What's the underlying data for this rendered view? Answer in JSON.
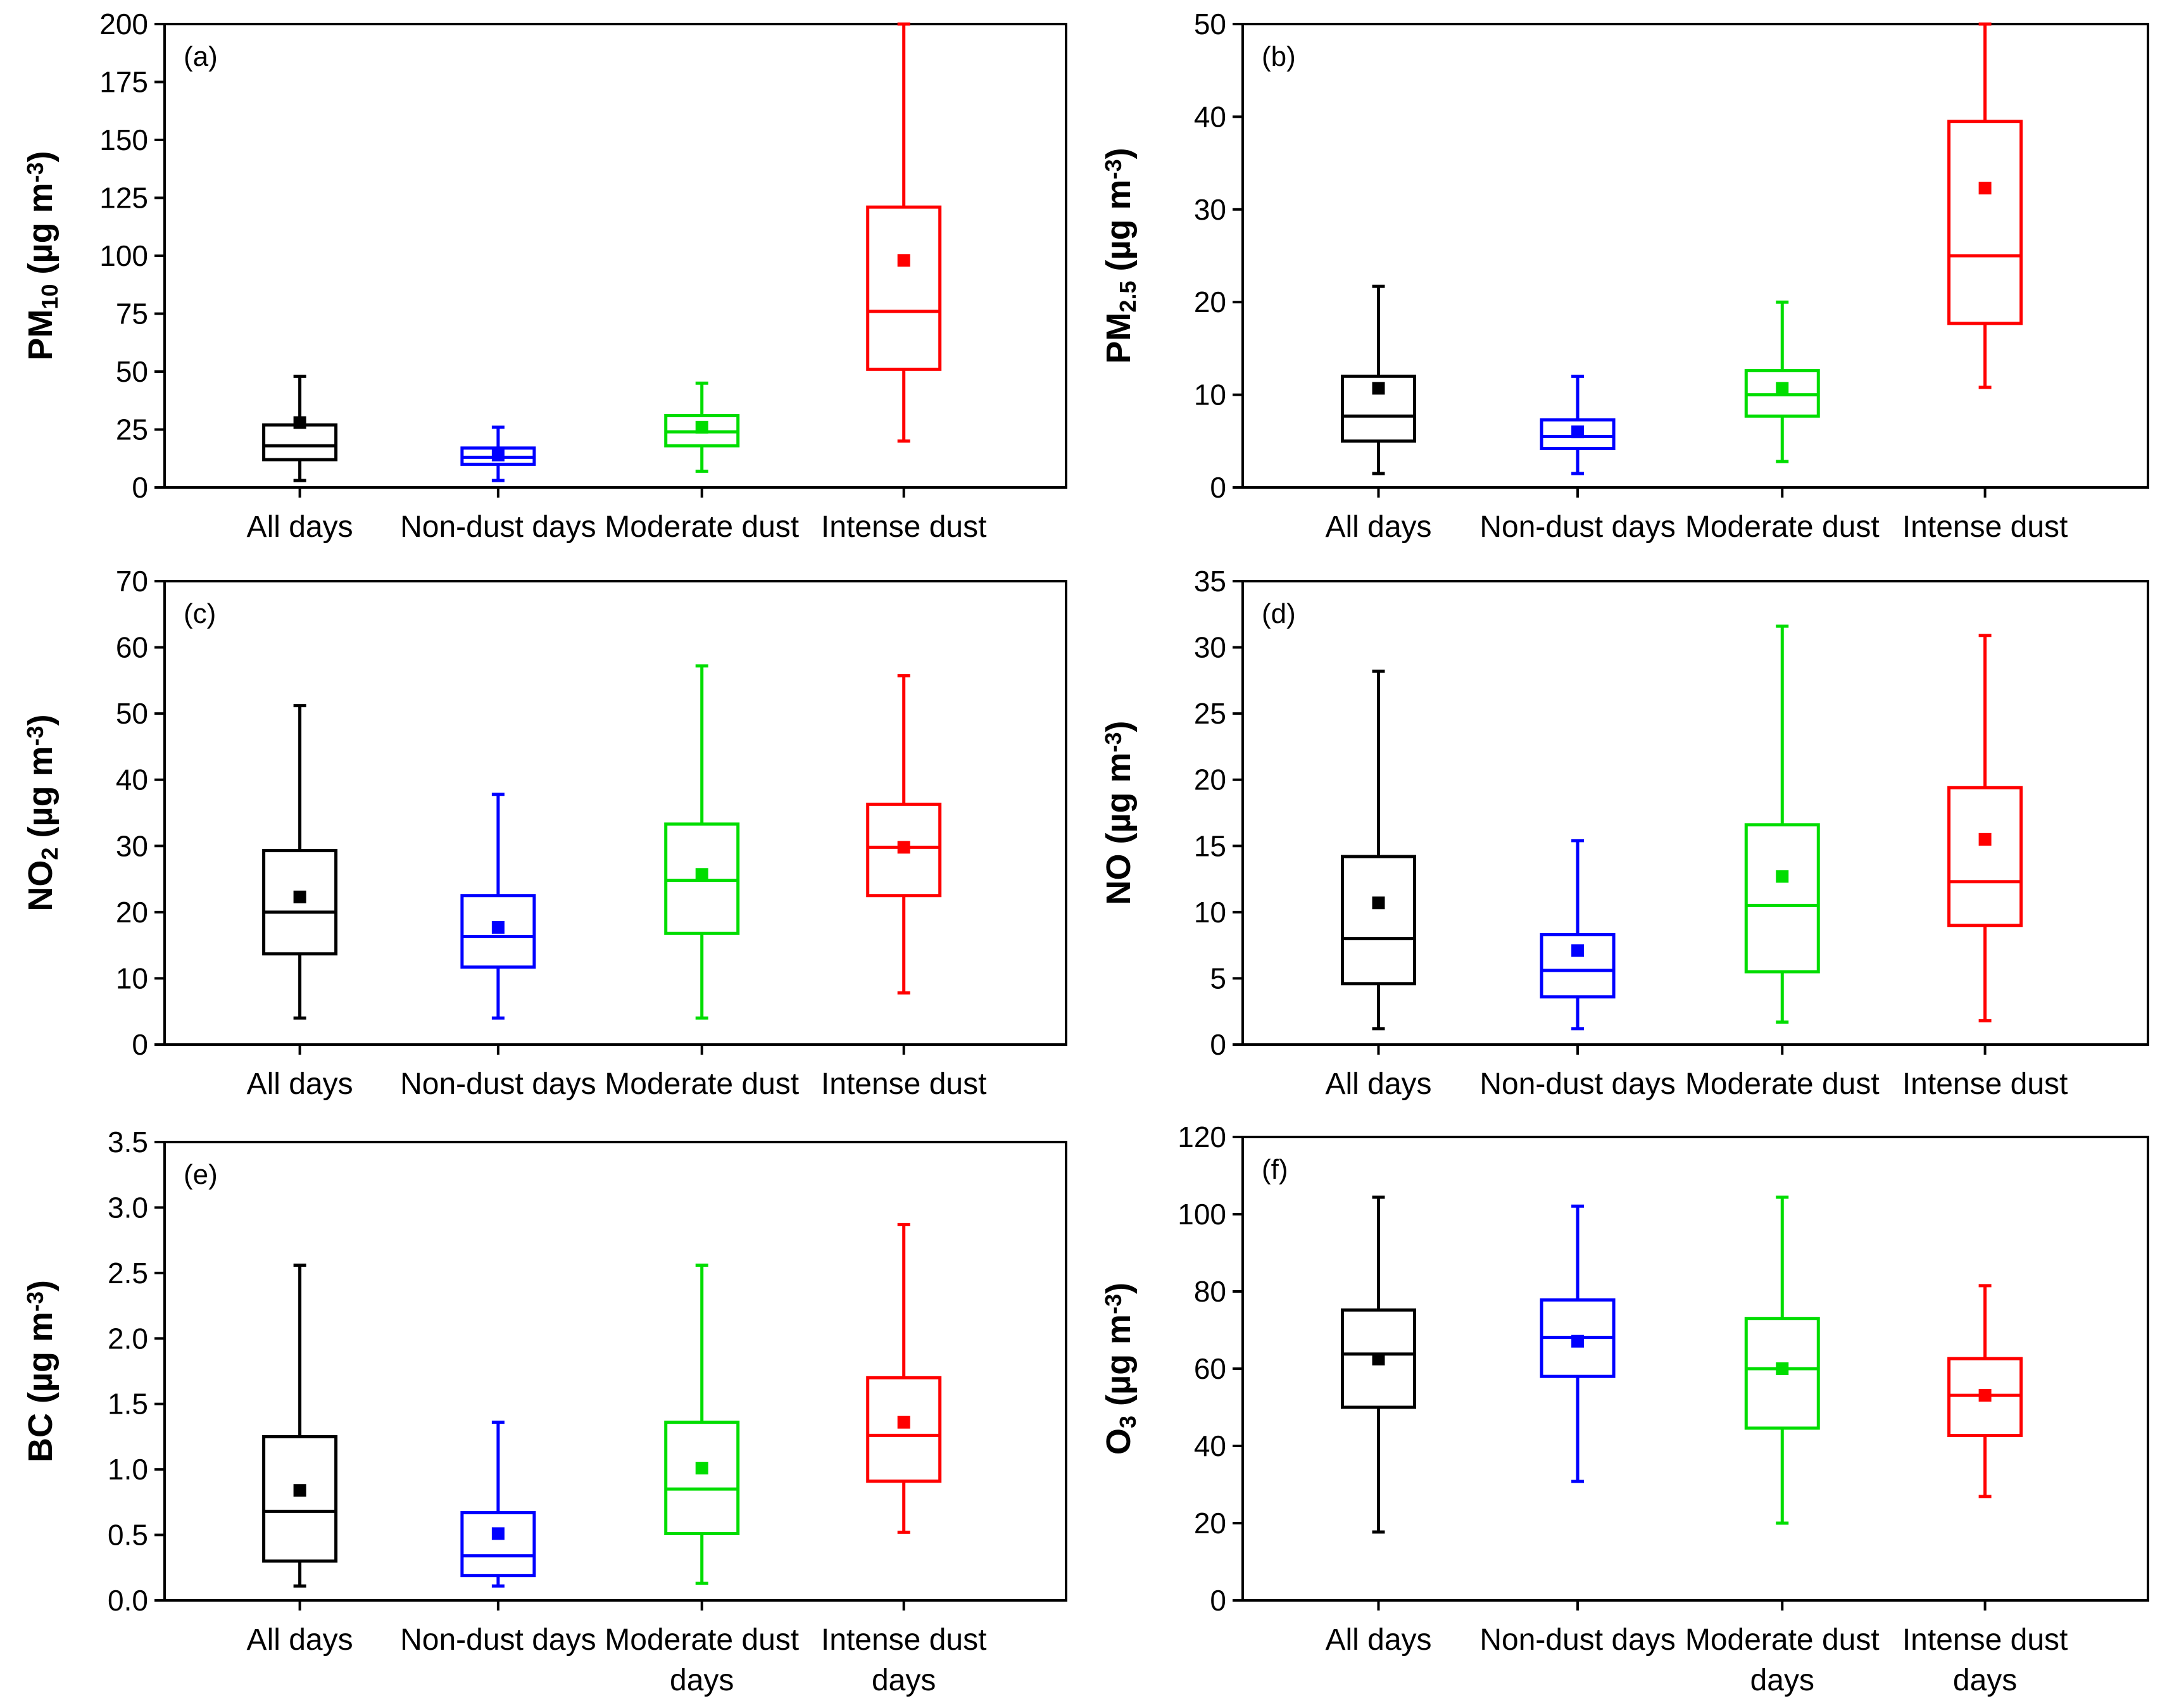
{
  "figure_title": "",
  "colors": {
    "All days": "#000000",
    "Non-dust days": "#0000ff",
    "Moderate dust": "#00dd00",
    "Intense dust": "#ff0000"
  },
  "chart_data": [
    {
      "type": "box",
      "panel": "(a)",
      "title": "",
      "ylabel": {
        "main": "PM",
        "sub": "10",
        "unit": " (µg m",
        "exp": "-3",
        "close": ")"
      },
      "ylim": [
        0,
        200
      ],
      "yticks": [
        "0",
        "25",
        "50",
        "75",
        "100",
        "125",
        "150",
        "175",
        "200"
      ],
      "categories": [
        [
          "All days"
        ],
        [
          "Non-dust days"
        ],
        [
          "Moderate dust"
        ],
        [
          "Intense dust"
        ]
      ],
      "series": [
        {
          "name": "All days",
          "whisker_low": 3,
          "q1": 12,
          "median": 18,
          "q3": 27,
          "whisker_high": 48,
          "mean": 28
        },
        {
          "name": "Non-dust days",
          "whisker_low": 3,
          "q1": 10,
          "median": 13,
          "q3": 17,
          "whisker_high": 26,
          "mean": 14
        },
        {
          "name": "Moderate dust",
          "whisker_low": 7,
          "q1": 18,
          "median": 24,
          "q3": 31,
          "whisker_high": 45,
          "mean": 26
        },
        {
          "name": "Intense dust",
          "whisker_low": 20,
          "q1": 51,
          "median": 76,
          "q3": 121,
          "whisker_high": 200,
          "mean": 98
        }
      ]
    },
    {
      "type": "box",
      "panel": "(b)",
      "title": "",
      "ylabel": {
        "main": "PM",
        "sub": "2.5",
        "unit": " (µg m",
        "exp": "-3",
        "close": ")"
      },
      "ylim": [
        0,
        50
      ],
      "yticks": [
        "0",
        "10",
        "20",
        "30",
        "40",
        "50"
      ],
      "categories": [
        [
          "All days"
        ],
        [
          "Non-dust days"
        ],
        [
          "Moderate dust"
        ],
        [
          "Intense dust"
        ]
      ],
      "series": [
        {
          "name": "All days",
          "whisker_low": 1.5,
          "q1": 5,
          "median": 7.7,
          "q3": 12,
          "whisker_high": 21.7,
          "mean": 10.7
        },
        {
          "name": "Non-dust days",
          "whisker_low": 1.5,
          "q1": 4.2,
          "median": 5.5,
          "q3": 7.3,
          "whisker_high": 12,
          "mean": 6
        },
        {
          "name": "Moderate dust",
          "whisker_low": 2.8,
          "q1": 7.7,
          "median": 10,
          "q3": 12.6,
          "whisker_high": 20,
          "mean": 10.7
        },
        {
          "name": "Intense dust",
          "whisker_low": 10.8,
          "q1": 17.7,
          "median": 25,
          "q3": 39.5,
          "whisker_high": 50,
          "mean": 32.3
        }
      ]
    },
    {
      "type": "box",
      "panel": "(c)",
      "title": "",
      "ylabel": {
        "main": "NO",
        "sub": "2",
        "unit": " (µg m",
        "exp": "-3",
        "close": ")"
      },
      "ylim": [
        0,
        70
      ],
      "yticks": [
        "0",
        "10",
        "20",
        "30",
        "40",
        "50",
        "60",
        "70"
      ],
      "categories": [
        [
          "All days"
        ],
        [
          "Non-dust days"
        ],
        [
          "Moderate dust"
        ],
        [
          "Intense dust"
        ]
      ],
      "series": [
        {
          "name": "All days",
          "whisker_low": 4,
          "q1": 13.7,
          "median": 20,
          "q3": 29.3,
          "whisker_high": 51.2,
          "mean": 22.3
        },
        {
          "name": "Non-dust days",
          "whisker_low": 4,
          "q1": 11.7,
          "median": 16.3,
          "q3": 22.5,
          "whisker_high": 37.8,
          "mean": 17.7
        },
        {
          "name": "Moderate dust",
          "whisker_low": 4,
          "q1": 16.8,
          "median": 24.8,
          "q3": 33.3,
          "whisker_high": 57.2,
          "mean": 25.7
        },
        {
          "name": "Intense dust",
          "whisker_low": 7.8,
          "q1": 22.5,
          "median": 29.8,
          "q3": 36.3,
          "whisker_high": 55.7,
          "mean": 29.8
        }
      ]
    },
    {
      "type": "box",
      "panel": "(d)",
      "title": "",
      "ylabel": {
        "main": "NO",
        "sub": "",
        "unit": " (µg m",
        "exp": "-3",
        "close": ")"
      },
      "ylim": [
        0,
        35
      ],
      "yticks": [
        "0",
        "5",
        "10",
        "15",
        "20",
        "25",
        "30",
        "35"
      ],
      "categories": [
        [
          "All days"
        ],
        [
          "Non-dust days"
        ],
        [
          "Moderate dust"
        ],
        [
          "Intense dust"
        ]
      ],
      "series": [
        {
          "name": "All days",
          "whisker_low": 1.2,
          "q1": 4.6,
          "median": 8,
          "q3": 14.2,
          "whisker_high": 28.2,
          "mean": 10.7
        },
        {
          "name": "Non-dust days",
          "whisker_low": 1.2,
          "q1": 3.6,
          "median": 5.6,
          "q3": 8.3,
          "whisker_high": 15.4,
          "mean": 7.1
        },
        {
          "name": "Moderate dust",
          "whisker_low": 1.7,
          "q1": 5.5,
          "median": 10.5,
          "q3": 16.6,
          "whisker_high": 31.6,
          "mean": 12.7
        },
        {
          "name": "Intense dust",
          "whisker_low": 1.8,
          "q1": 9,
          "median": 12.3,
          "q3": 19.4,
          "whisker_high": 30.9,
          "mean": 15.5
        }
      ]
    },
    {
      "type": "box",
      "panel": "(e)",
      "title": "",
      "ylabel": {
        "main": "BC",
        "sub": "",
        "unit": " (µg m",
        "exp": "-3",
        "close": ")"
      },
      "ylim": [
        0,
        3.5
      ],
      "yticks": [
        "0.0",
        "0.5",
        "1.0",
        "1.5",
        "2.0",
        "2.5",
        "3.0",
        "3.5"
      ],
      "categories": [
        [
          "All days"
        ],
        [
          "Non-dust days"
        ],
        [
          "Moderate dust",
          "days"
        ],
        [
          "Intense dust",
          "days"
        ]
      ],
      "series": [
        {
          "name": "All days",
          "whisker_low": 0.11,
          "q1": 0.3,
          "median": 0.68,
          "q3": 1.25,
          "whisker_high": 2.56,
          "mean": 0.84
        },
        {
          "name": "Non-dust days",
          "whisker_low": 0.11,
          "q1": 0.19,
          "median": 0.34,
          "q3": 0.67,
          "whisker_high": 1.36,
          "mean": 0.51
        },
        {
          "name": "Moderate dust days",
          "whisker_low": 0.13,
          "q1": 0.51,
          "median": 0.85,
          "q3": 1.36,
          "whisker_high": 2.56,
          "mean": 1.01
        },
        {
          "name": "Intense dust days",
          "whisker_low": 0.52,
          "q1": 0.91,
          "median": 1.26,
          "q3": 1.7,
          "whisker_high": 2.87,
          "mean": 1.36
        }
      ]
    },
    {
      "type": "box",
      "panel": "(f)",
      "title": "",
      "ylabel": {
        "main": "O",
        "sub": "3",
        "unit": " (µg m",
        "exp": "-3",
        "close": ")"
      },
      "ylim": [
        0,
        120
      ],
      "yticks": [
        "0",
        "20",
        "40",
        "60",
        "80",
        "100",
        "120"
      ],
      "categories": [
        [
          "All days"
        ],
        [
          "Non-dust days"
        ],
        [
          "Moderate dust",
          "days"
        ],
        [
          "Intense dust",
          "days"
        ]
      ],
      "series": [
        {
          "name": "All days",
          "whisker_low": 17.7,
          "q1": 50,
          "median": 63.8,
          "q3": 75.2,
          "whisker_high": 104.4,
          "mean": 62.5
        },
        {
          "name": "Non-dust days",
          "whisker_low": 30.8,
          "q1": 58,
          "median": 68.1,
          "q3": 77.8,
          "whisker_high": 102.1,
          "mean": 67.1
        },
        {
          "name": "Moderate dust days",
          "whisker_low": 20,
          "q1": 44.6,
          "median": 60,
          "q3": 73,
          "whisker_high": 104.4,
          "mean": 60
        },
        {
          "name": "Intense dust days",
          "whisker_low": 26.9,
          "q1": 42.7,
          "median": 53.1,
          "q3": 62.6,
          "whisker_high": 81.5,
          "mean": 53.1
        }
      ]
    }
  ]
}
